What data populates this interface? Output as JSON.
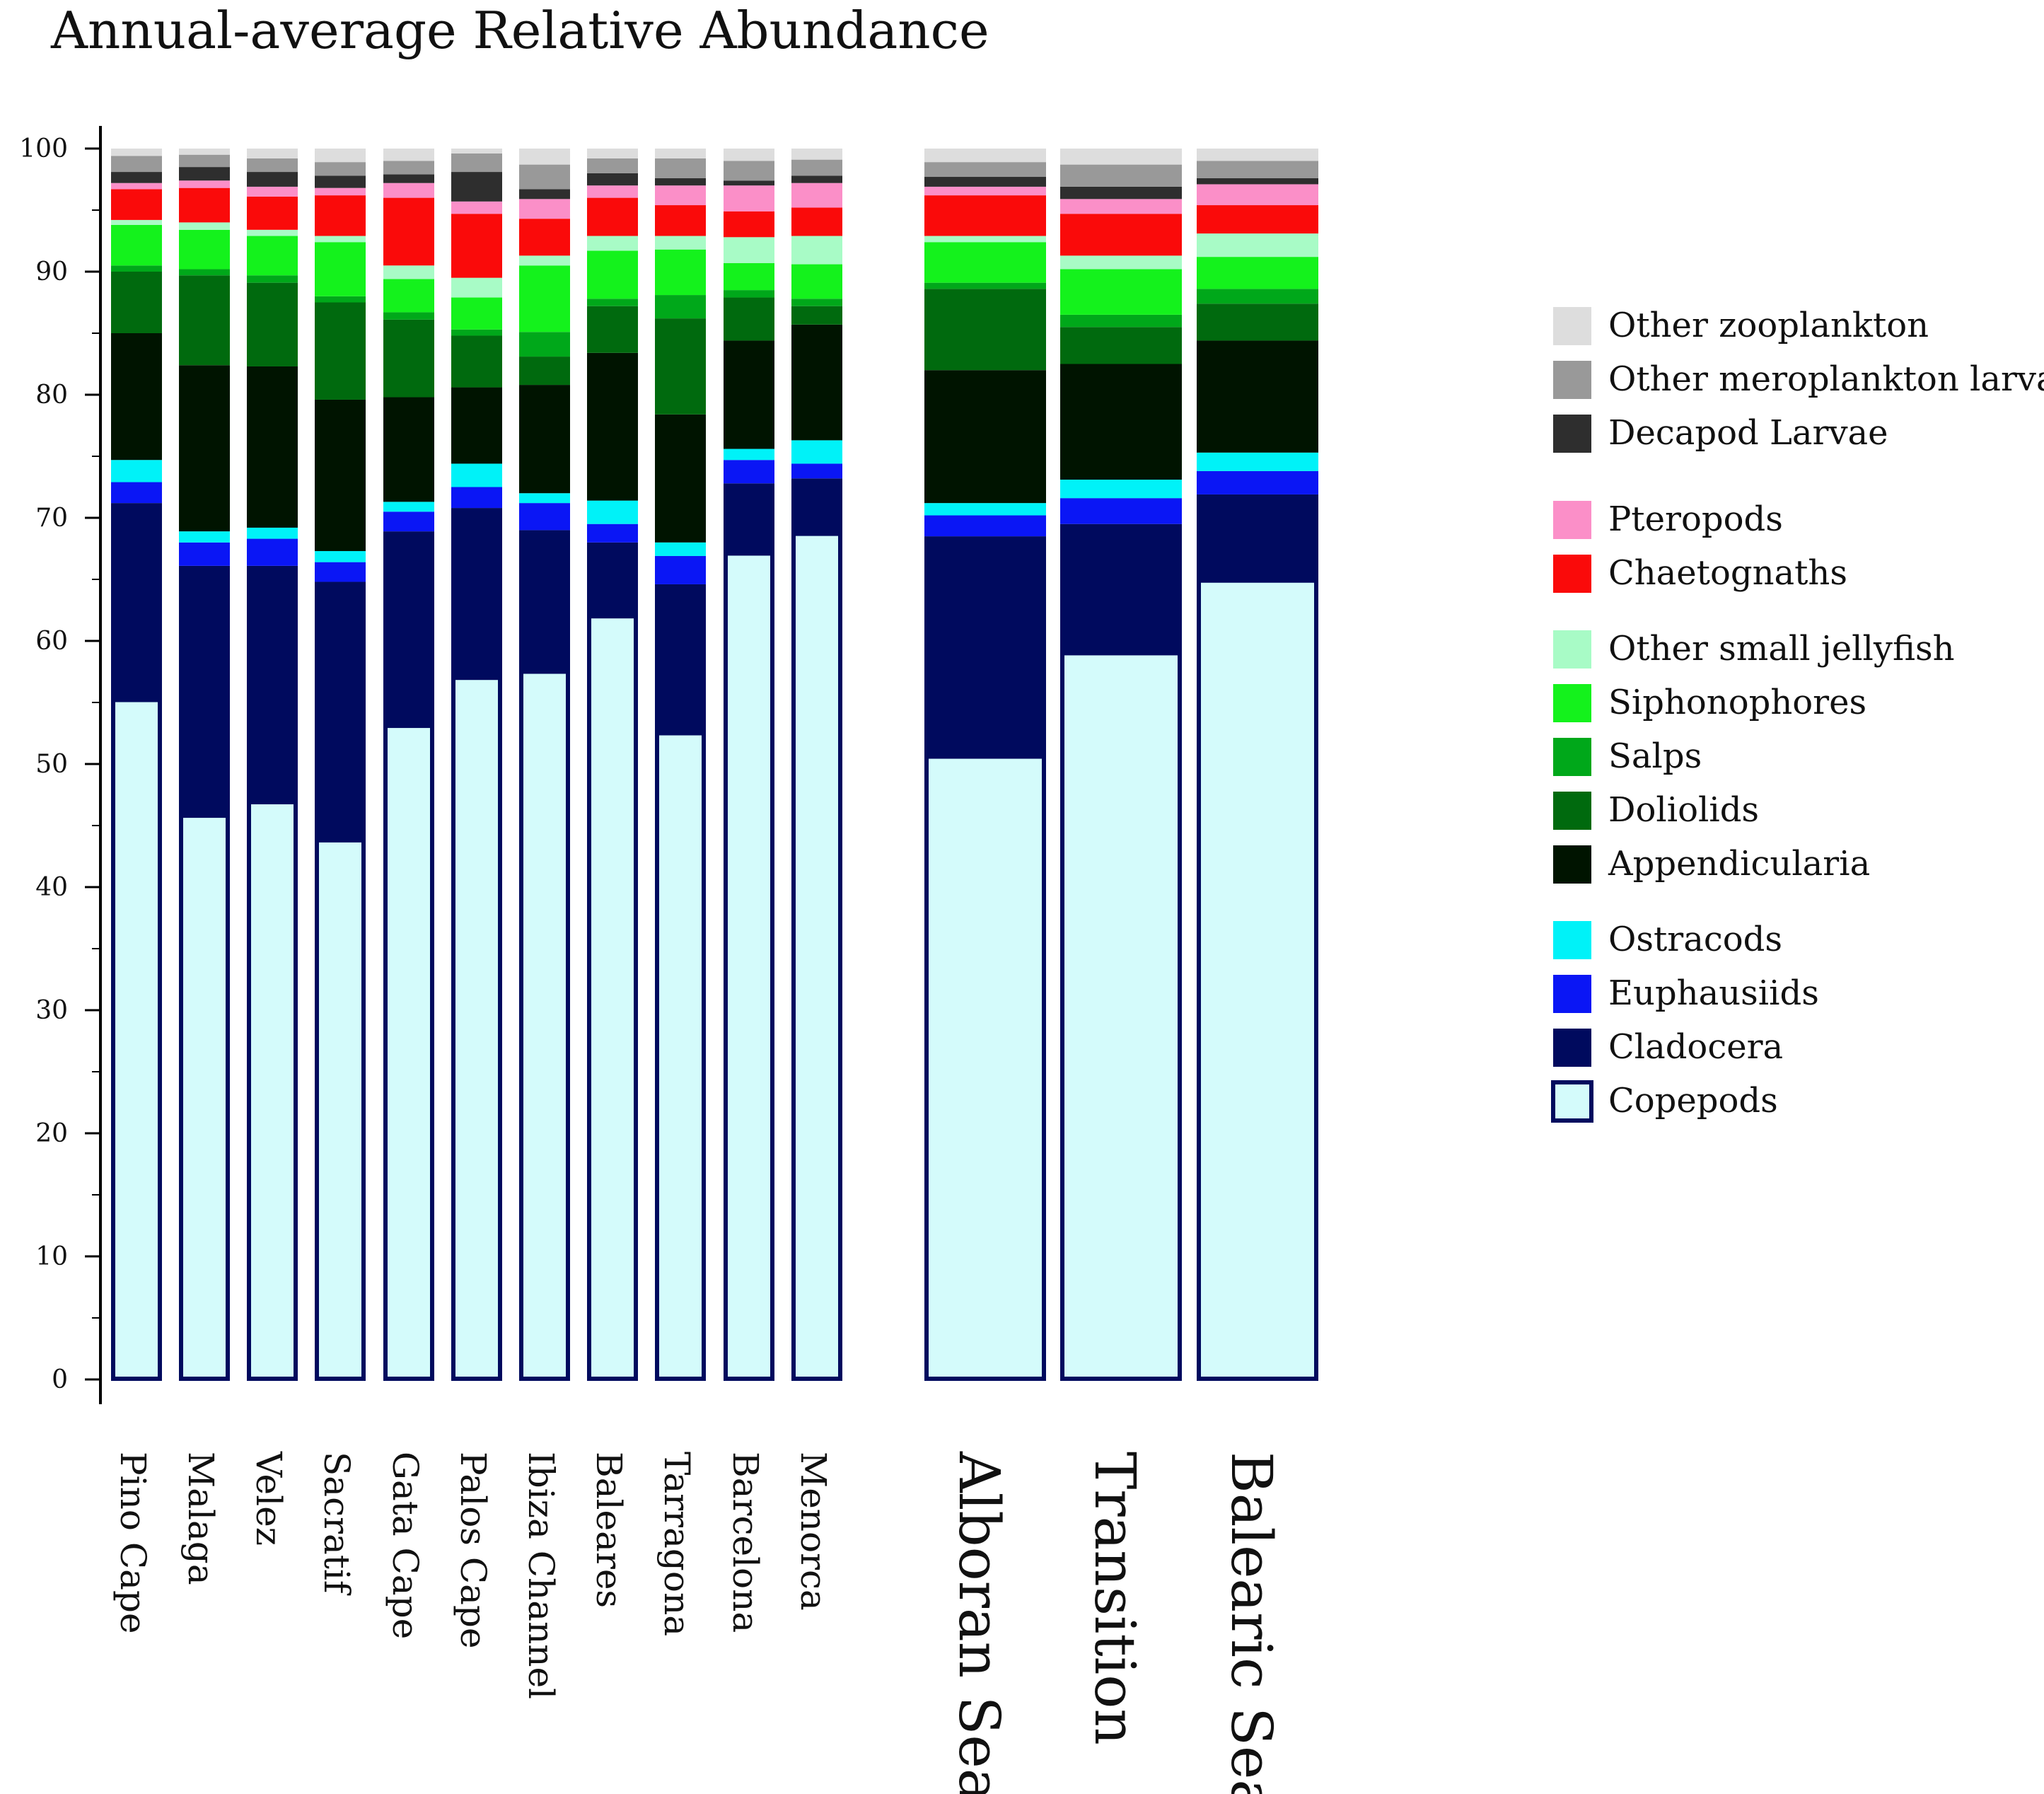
{
  "chart_data": {
    "type": "bar",
    "stacked": true,
    "title": "Annual-average Relative Abundance",
    "xlabel": "",
    "ylabel": "",
    "ylim": [
      0,
      100
    ],
    "yticks": [
      "0",
      "10",
      "20",
      "30",
      "40",
      "50",
      "60",
      "70",
      "80",
      "90",
      "100"
    ],
    "categories": [
      "Pino Cape",
      "Malaga",
      "Velez",
      "Sacratif",
      "Gata Cape",
      "Palos Cape",
      "Ibiza Channel",
      "Baleares",
      "Tarragona",
      "Barcelona",
      "Menorca"
    ],
    "region_categories": [
      "Alboran Sea",
      "Transition",
      "Balearic Sea"
    ],
    "legend_position": "right",
    "series": [
      {
        "name": "Copepods",
        "color": "#D4FBFB",
        "values": [
          55.2,
          45.8,
          46.9,
          43.8,
          53.1,
          57.0,
          57.5,
          62.0,
          52.5,
          67.1,
          68.7
        ],
        "region_values": [
          50.6,
          59.0,
          64.9
        ]
      },
      {
        "name": "Cladocera",
        "color": "#000A5E",
        "values": [
          16.0,
          20.3,
          19.2,
          21.0,
          15.8,
          13.8,
          11.5,
          6.0,
          12.1,
          5.7,
          4.5
        ],
        "region_values": [
          17.9,
          10.5,
          7.0
        ]
      },
      {
        "name": "Euphausiids",
        "color": "#0A16F5",
        "values": [
          1.7,
          1.9,
          2.2,
          1.6,
          1.6,
          1.7,
          2.2,
          1.5,
          2.3,
          1.9,
          1.2
        ],
        "region_values": [
          1.7,
          2.1,
          1.9
        ]
      },
      {
        "name": "Ostracods",
        "color": "#00F2F8",
        "values": [
          1.8,
          0.9,
          0.9,
          0.9,
          0.8,
          1.9,
          0.8,
          1.9,
          1.1,
          0.9,
          1.9
        ],
        "region_values": [
          1.0,
          1.5,
          1.5
        ]
      },
      {
        "name": "Appendicularia",
        "color": "#001400",
        "values": [
          10.3,
          13.5,
          13.1,
          12.3,
          8.5,
          6.2,
          8.8,
          12.0,
          10.4,
          8.8,
          9.4
        ],
        "region_values": [
          10.8,
          9.4,
          9.1
        ]
      },
      {
        "name": "Doliolids",
        "color": "#006A0E",
        "values": [
          5.0,
          7.3,
          6.8,
          7.9,
          6.3,
          4.2,
          2.3,
          3.8,
          7.8,
          3.5,
          1.5
        ],
        "region_values": [
          6.6,
          3.0,
          3.0
        ]
      },
      {
        "name": "Salps",
        "color": "#00A81A",
        "values": [
          0.5,
          0.5,
          0.6,
          0.5,
          0.6,
          0.5,
          2.0,
          0.6,
          1.9,
          0.6,
          0.6
        ],
        "region_values": [
          0.5,
          1.0,
          1.2
        ]
      },
      {
        "name": "Siphonophores",
        "color": "#14F21C",
        "values": [
          3.3,
          3.2,
          3.2,
          4.4,
          2.7,
          2.6,
          5.4,
          3.9,
          3.7,
          2.2,
          2.8
        ],
        "region_values": [
          3.3,
          3.7,
          2.6
        ]
      },
      {
        "name": "Other small jellyfish",
        "color": "#A8FBC6",
        "values": [
          0.4,
          0.6,
          0.5,
          0.5,
          1.1,
          1.6,
          0.8,
          1.2,
          1.1,
          2.1,
          2.3
        ],
        "region_values": [
          0.5,
          1.1,
          1.9
        ]
      },
      {
        "name": "Chaetognaths",
        "color": "#FA0A0A",
        "values": [
          2.5,
          2.8,
          2.7,
          3.3,
          5.5,
          5.2,
          3.0,
          3.1,
          2.5,
          2.1,
          2.3
        ],
        "region_values": [
          3.3,
          3.4,
          2.3
        ]
      },
      {
        "name": "Pteropods",
        "color": "#FB8FC8",
        "values": [
          0.5,
          0.6,
          0.8,
          0.6,
          1.2,
          1.0,
          1.6,
          1.0,
          1.6,
          2.1,
          2.0
        ],
        "region_values": [
          0.7,
          1.2,
          1.7
        ]
      },
      {
        "name": "Decapod Larvae",
        "color": "#2E2E2E",
        "values": [
          0.9,
          1.1,
          1.2,
          1.0,
          0.7,
          2.4,
          0.8,
          1.0,
          0.6,
          0.4,
          0.6
        ],
        "region_values": [
          0.8,
          1.0,
          0.5
        ]
      },
      {
        "name": "Other meroplankton larvae",
        "color": "#999999",
        "values": [
          1.3,
          1.0,
          1.1,
          1.1,
          1.1,
          1.5,
          2.0,
          1.2,
          1.6,
          1.6,
          1.3
        ],
        "region_values": [
          1.2,
          1.8,
          1.4
        ]
      },
      {
        "name": "Other zooplankton",
        "color": "#DDDDDD",
        "values": [
          0.6,
          0.5,
          0.8,
          1.1,
          1.0,
          0.4,
          1.3,
          0.8,
          0.8,
          1.0,
          0.9
        ],
        "region_values": [
          1.1,
          1.3,
          1.0
        ]
      }
    ],
    "legend_groups": [
      [
        "Other zooplankton",
        "Other meroplankton larvae",
        "Decapod Larvae"
      ],
      [
        "Pteropods",
        "Chaetognaths"
      ],
      [
        "Other small jellyfish",
        "Siphonophores",
        "Salps",
        "Doliolids",
        "Appendicularia"
      ],
      [
        "Ostracods",
        "Euphausiids",
        "Cladocera",
        "Copepods"
      ]
    ]
  }
}
